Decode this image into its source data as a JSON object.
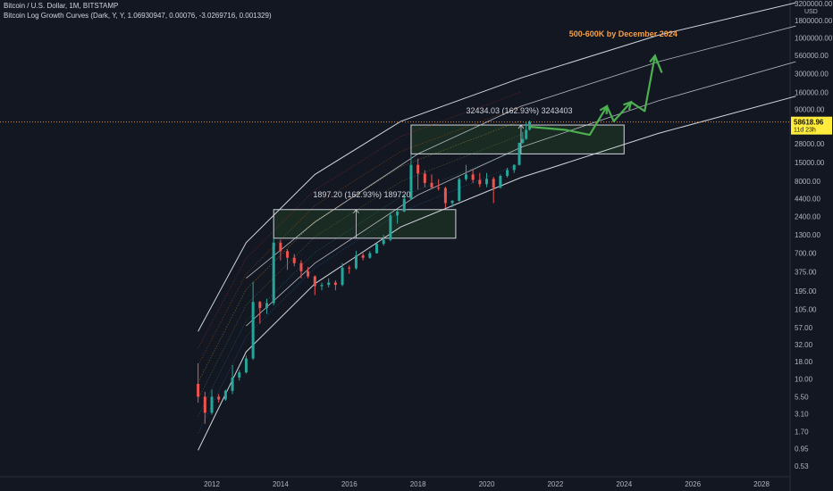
{
  "header": {
    "symbol_line": "Bitcoin / U.S. Dollar, 1M, BITSTAMP",
    "indicator_line": "Bitcoin Log Growth Curves (Dark, Y, Y, 1.06930947, 0.00076, -3.0269716, 0.001329)"
  },
  "colors": {
    "background": "#131722",
    "up_candle": "#26a69a",
    "down_candle": "#ef5350",
    "curve_line": "#d1d4dc",
    "forecast_arrow": "#4caf50",
    "annotation_orange": "#f7a046",
    "price_tag": "#ffeb3b",
    "box_fill": "#1e3326"
  },
  "chart_data": {
    "type": "candlestick",
    "yscale": "log",
    "xlabel": "",
    "ylabel": "",
    "currency_label": "USD",
    "x_ticks": [
      "2012",
      "2014",
      "2016",
      "2018",
      "2020",
      "2022",
      "2024",
      "2026",
      "2028"
    ],
    "y_ticks": [
      "3200000.00",
      "1800000.00",
      "1000000.00",
      "560000.00",
      "300000.00",
      "160000.00",
      "90000.00",
      "50000.00",
      "28000.00",
      "15000.00",
      "8000.00",
      "4400.00",
      "2400.00",
      "1300.00",
      "700.00",
      "375.00",
      "195.00",
      "105.00",
      "57.00",
      "32.00",
      "18.00",
      "10.00",
      "5.50",
      "3.10",
      "1.70",
      "0.95",
      "0.53"
    ],
    "current_price": "58618.96",
    "countdown": "11d 23h",
    "candles": [
      {
        "t": 2011.6,
        "o": 8.5,
        "h": 17.0,
        "l": 4.5,
        "c": 5.5
      },
      {
        "t": 2011.8,
        "o": 5.5,
        "h": 6.5,
        "l": 2.2,
        "c": 3.2
      },
      {
        "t": 2012.0,
        "o": 3.2,
        "h": 7.0,
        "l": 3.0,
        "c": 5.5
      },
      {
        "t": 2012.2,
        "o": 5.5,
        "h": 6.0,
        "l": 4.5,
        "c": 5.0
      },
      {
        "t": 2012.4,
        "o": 5.0,
        "h": 7.0,
        "l": 4.8,
        "c": 6.7
      },
      {
        "t": 2012.6,
        "o": 6.7,
        "h": 16.0,
        "l": 6.0,
        "c": 10.5
      },
      {
        "t": 2012.8,
        "o": 10.5,
        "h": 13.5,
        "l": 9.5,
        "c": 12.5
      },
      {
        "t": 2013.0,
        "o": 12.5,
        "h": 22.0,
        "l": 12.0,
        "c": 20.0
      },
      {
        "t": 2013.2,
        "o": 20.0,
        "h": 266.0,
        "l": 19.0,
        "c": 135.0
      },
      {
        "t": 2013.4,
        "o": 135.0,
        "h": 140.0,
        "l": 65.0,
        "c": 110.0
      },
      {
        "t": 2013.6,
        "o": 110.0,
        "h": 150.0,
        "l": 90.0,
        "c": 130.0
      },
      {
        "t": 2013.8,
        "o": 130.0,
        "h": 1160.0,
        "l": 120.0,
        "c": 1000.0
      },
      {
        "t": 2014.0,
        "o": 1000.0,
        "h": 1100.0,
        "l": 550.0,
        "c": 750.0
      },
      {
        "t": 2014.2,
        "o": 750.0,
        "h": 800.0,
        "l": 400.0,
        "c": 600.0
      },
      {
        "t": 2014.4,
        "o": 600.0,
        "h": 680.0,
        "l": 450.0,
        "c": 500.0
      },
      {
        "t": 2014.6,
        "o": 500.0,
        "h": 550.0,
        "l": 300.0,
        "c": 380.0
      },
      {
        "t": 2014.8,
        "o": 380.0,
        "h": 440.0,
        "l": 300.0,
        "c": 320.0
      },
      {
        "t": 2015.0,
        "o": 320.0,
        "h": 330.0,
        "l": 170.0,
        "c": 230.0
      },
      {
        "t": 2015.2,
        "o": 230.0,
        "h": 260.0,
        "l": 200.0,
        "c": 240.0
      },
      {
        "t": 2015.4,
        "o": 240.0,
        "h": 300.0,
        "l": 220.0,
        "c": 260.0
      },
      {
        "t": 2015.6,
        "o": 260.0,
        "h": 280.0,
        "l": 200.0,
        "c": 240.0
      },
      {
        "t": 2015.8,
        "o": 240.0,
        "h": 500.0,
        "l": 230.0,
        "c": 430.0
      },
      {
        "t": 2016.0,
        "o": 430.0,
        "h": 460.0,
        "l": 350.0,
        "c": 420.0
      },
      {
        "t": 2016.2,
        "o": 420.0,
        "h": 760.0,
        "l": 400.0,
        "c": 650.0
      },
      {
        "t": 2016.4,
        "o": 650.0,
        "h": 700.0,
        "l": 550.0,
        "c": 600.0
      },
      {
        "t": 2016.6,
        "o": 600.0,
        "h": 750.0,
        "l": 580.0,
        "c": 700.0
      },
      {
        "t": 2016.8,
        "o": 700.0,
        "h": 980.0,
        "l": 690.0,
        "c": 960.0
      },
      {
        "t": 2017.0,
        "o": 960.0,
        "h": 1300.0,
        "l": 900.0,
        "c": 1100.0
      },
      {
        "t": 2017.2,
        "o": 1100.0,
        "h": 2800.0,
        "l": 1050.0,
        "c": 2500.0
      },
      {
        "t": 2017.4,
        "o": 2500.0,
        "h": 3000.0,
        "l": 1900.0,
        "c": 2850.0
      },
      {
        "t": 2017.6,
        "o": 2850.0,
        "h": 5000.0,
        "l": 2800.0,
        "c": 4400.0
      },
      {
        "t": 2017.8,
        "o": 4400.0,
        "h": 19800.0,
        "l": 4200.0,
        "c": 13800.0
      },
      {
        "t": 2018.0,
        "o": 13800.0,
        "h": 17000.0,
        "l": 6000.0,
        "c": 10300.0
      },
      {
        "t": 2018.2,
        "o": 10300.0,
        "h": 11500.0,
        "l": 6500.0,
        "c": 7500.0
      },
      {
        "t": 2018.4,
        "o": 7500.0,
        "h": 10000.0,
        "l": 6500.0,
        "c": 6400.0
      },
      {
        "t": 2018.6,
        "o": 6400.0,
        "h": 8500.0,
        "l": 5800.0,
        "c": 6300.0
      },
      {
        "t": 2018.8,
        "o": 6300.0,
        "h": 6600.0,
        "l": 3200.0,
        "c": 3800.0
      },
      {
        "t": 2019.0,
        "o": 3800.0,
        "h": 4200.0,
        "l": 3300.0,
        "c": 4100.0
      },
      {
        "t": 2019.2,
        "o": 4100.0,
        "h": 9000.0,
        "l": 4000.0,
        "c": 8500.0
      },
      {
        "t": 2019.4,
        "o": 8500.0,
        "h": 13800.0,
        "l": 8000.0,
        "c": 10000.0
      },
      {
        "t": 2019.6,
        "o": 10000.0,
        "h": 12000.0,
        "l": 7500.0,
        "c": 8300.0
      },
      {
        "t": 2019.8,
        "o": 8300.0,
        "h": 10500.0,
        "l": 6500.0,
        "c": 7200.0
      },
      {
        "t": 2020.0,
        "o": 7200.0,
        "h": 10500.0,
        "l": 6500.0,
        "c": 8600.0
      },
      {
        "t": 2020.2,
        "o": 8600.0,
        "h": 9200.0,
        "l": 3800.0,
        "c": 6400.0
      },
      {
        "t": 2020.4,
        "o": 6400.0,
        "h": 10000.0,
        "l": 6200.0,
        "c": 9500.0
      },
      {
        "t": 2020.6,
        "o": 9500.0,
        "h": 12500.0,
        "l": 9000.0,
        "c": 11600.0
      },
      {
        "t": 2020.8,
        "o": 11600.0,
        "h": 14000.0,
        "l": 10500.0,
        "c": 13800.0
      },
      {
        "t": 2020.95,
        "o": 13800.0,
        "h": 29300.0,
        "l": 13500.0,
        "c": 29000.0
      },
      {
        "t": 2021.05,
        "o": 29000.0,
        "h": 42000.0,
        "l": 28000.0,
        "c": 33100.0
      },
      {
        "t": 2021.15,
        "o": 33100.0,
        "h": 58300.0,
        "l": 32000.0,
        "c": 45200.0
      },
      {
        "t": 2021.25,
        "o": 45200.0,
        "h": 61800.0,
        "l": 44000.0,
        "c": 58618.96
      }
    ],
    "growth_curves": [
      {
        "name": "upper",
        "points": [
          [
            2011.6,
            50
          ],
          [
            2013.0,
            1000
          ],
          [
            2015.0,
            10000
          ],
          [
            2017.5,
            60000
          ],
          [
            2021.0,
            260000
          ],
          [
            2025.0,
            1100000
          ],
          [
            2029.0,
            3300000
          ]
        ]
      },
      {
        "name": "lower",
        "points": [
          [
            2011.6,
            0.9
          ],
          [
            2013.0,
            25
          ],
          [
            2015.0,
            250
          ],
          [
            2017.5,
            1700
          ],
          [
            2021.0,
            9000
          ],
          [
            2025.0,
            40000
          ],
          [
            2029.0,
            140000
          ]
        ]
      },
      {
        "name": "inner-upper",
        "points": [
          [
            2013.0,
            300
          ],
          [
            2015.0,
            2000
          ],
          [
            2018.0,
            20000
          ],
          [
            2021.0,
            100000
          ],
          [
            2025.0,
            450000
          ],
          [
            2029.0,
            1500000
          ]
        ]
      },
      {
        "name": "inner-lower",
        "points": [
          [
            2013.0,
            60
          ],
          [
            2015.0,
            500
          ],
          [
            2018.0,
            5000
          ],
          [
            2021.0,
            25000
          ],
          [
            2025.0,
            120000
          ],
          [
            2029.0,
            450000
          ]
        ]
      }
    ],
    "annotations": {
      "measure_2014": "1897.20 (162.93%) 189720",
      "measure_2021": "32434.03 (162.93%) 3243403",
      "forecast": "500-600K by December 2024"
    },
    "boxes": [
      {
        "t1": 2013.8,
        "t2": 2019.1,
        "p1": 1160,
        "p2": 3050
      },
      {
        "t1": 2017.8,
        "t2": 2024.0,
        "p1": 20000,
        "p2": 53000
      }
    ],
    "forecast_path": [
      [
        2021.25,
        50000
      ],
      [
        2022.3,
        45000
      ],
      [
        2023.0,
        38000
      ],
      [
        2023.5,
        100000
      ],
      [
        2023.7,
        60000
      ],
      [
        2024.2,
        115000
      ],
      [
        2024.6,
        85000
      ],
      [
        2024.9,
        550000
      ],
      [
        2025.1,
        310000
      ]
    ]
  }
}
